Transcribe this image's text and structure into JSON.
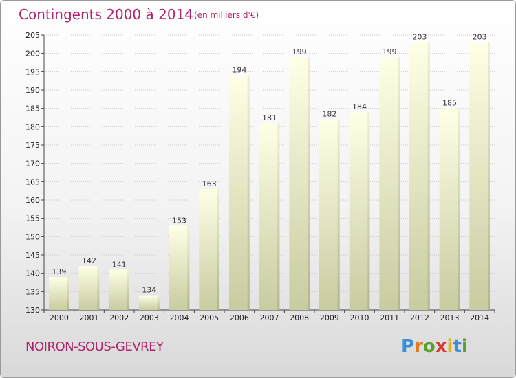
{
  "header": {
    "title": "Contingents 2000 à 2014",
    "unit": "(en milliers d'€)"
  },
  "footer": {
    "place": "NOIRON-SOUS-GEVREY",
    "brand": "Proxiti"
  },
  "colors": {
    "title": "#b0246b",
    "bar_top": "#ffffe6",
    "bar_bottom": "#c9cba0",
    "grid": "#cccccc"
  },
  "chart_data": {
    "type": "bar",
    "categories": [
      "2000",
      "2001",
      "2002",
      "2003",
      "2004",
      "2005",
      "2006",
      "2007",
      "2008",
      "2009",
      "2010",
      "2011",
      "2012",
      "2013",
      "2014"
    ],
    "values": [
      139,
      142,
      141,
      134,
      153,
      163,
      194,
      181,
      199,
      182,
      184,
      199,
      203,
      185,
      203
    ],
    "ylim": [
      130,
      205
    ],
    "yticks": [
      130,
      135,
      140,
      145,
      150,
      155,
      160,
      165,
      170,
      175,
      180,
      185,
      190,
      195,
      200,
      205
    ],
    "grid": true,
    "data_labels": true
  }
}
